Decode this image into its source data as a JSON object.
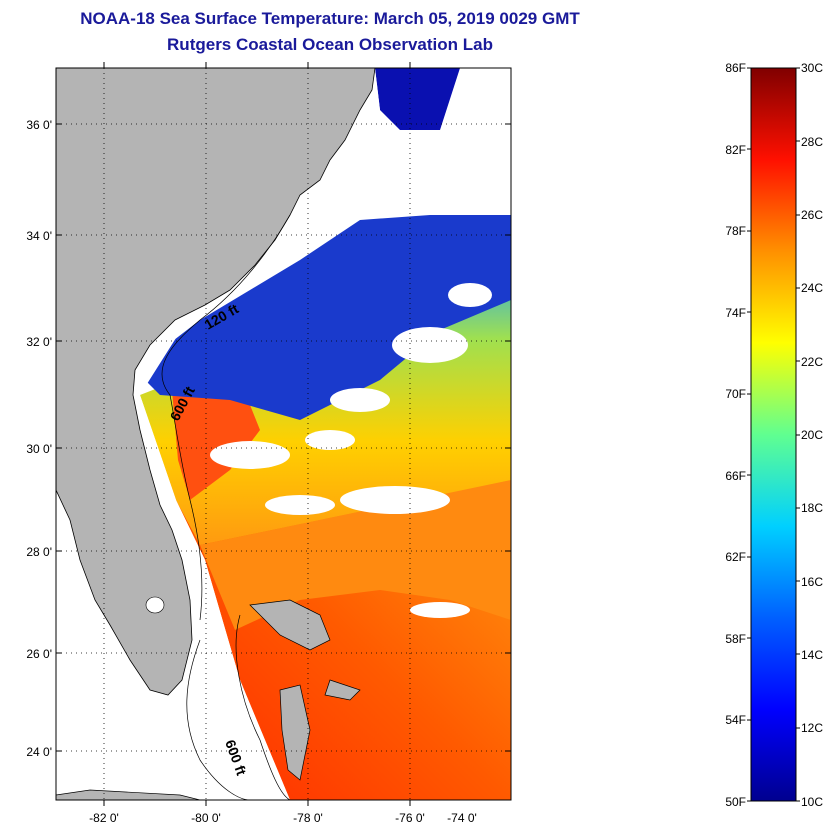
{
  "title": "NOAA-18 Sea Surface Temperature:  March 05, 2019 0029 GMT",
  "subtitle": "Rutgers Coastal Ocean Observation Lab",
  "map": {
    "lat_ticks": [
      "36 0'",
      "34 0'",
      "32 0'",
      "30 0'",
      "28 0'",
      "26 0'",
      "24 0'"
    ],
    "lon_ticks": [
      "-82 0'",
      "-80 0'",
      "-78 0'",
      "-76 0'",
      "-74 0'"
    ],
    "contour_labels": [
      "120 ft",
      "600 ft",
      "600 ft"
    ],
    "land_color": "#b4b4b4",
    "no_data_color": "#ffffff"
  },
  "colorbar": {
    "f_labels": [
      "86F",
      "82F",
      "78F",
      "74F",
      "70F",
      "66F",
      "62F",
      "58F",
      "54F",
      "50F"
    ],
    "c_labels": [
      "30C",
      "28C",
      "26C",
      "24C",
      "22C",
      "20C",
      "18C",
      "16C",
      "14C",
      "12C",
      "10C"
    ],
    "colormap": [
      "#00008f",
      "#0000ff",
      "#007fff",
      "#00ffff",
      "#7fff7f",
      "#ffff00",
      "#ff7f00",
      "#ff0000",
      "#7f0000"
    ]
  }
}
